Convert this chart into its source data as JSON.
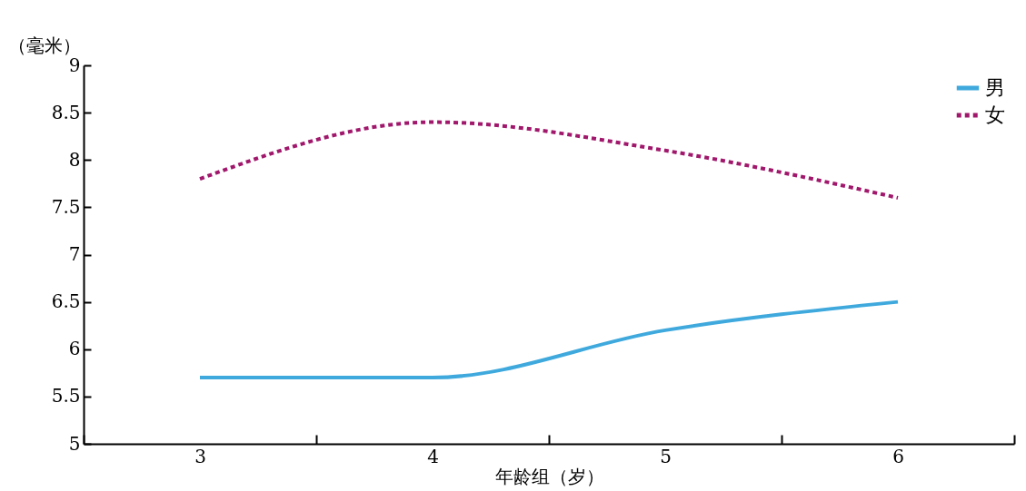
{
  "chart_data": {
    "type": "line",
    "xlabel": "年龄组（岁）",
    "ylabel": "（毫米）",
    "categories": [
      "3",
      "4",
      "5",
      "6"
    ],
    "series": [
      {
        "name": "男",
        "color": "#3fa9dd",
        "line_style": "solid",
        "values": [
          5.7,
          5.7,
          6.2,
          6.5
        ]
      },
      {
        "name": "女",
        "color": "#a0176b",
        "line_style": "dotted",
        "values": [
          7.8,
          8.4,
          8.1,
          7.6
        ]
      }
    ],
    "ylim": [
      5,
      9
    ],
    "yticks": [
      5,
      5.5,
      6,
      6.5,
      7,
      7.5,
      8,
      8.5,
      9
    ],
    "grid": false,
    "legend": "top right",
    "marker": "none"
  }
}
